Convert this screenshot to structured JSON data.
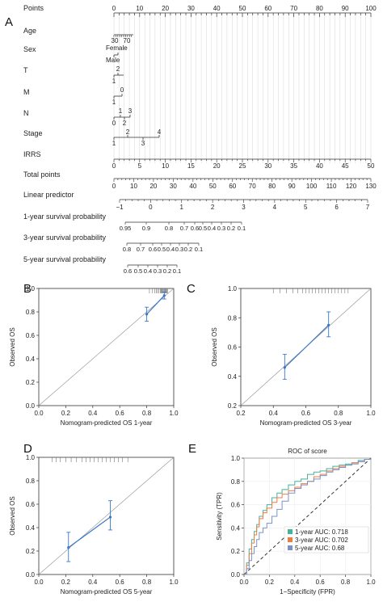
{
  "panels": {
    "A": "A",
    "B": "B",
    "C": "C",
    "D": "D",
    "E": "E"
  },
  "colors": {
    "curve": "#3a78c8",
    "ideal": "#9a9a9a",
    "rug": "#777777",
    "roc_1y": "#43b39a",
    "roc_3y": "#f07b3f",
    "roc_5y": "#7b92c9",
    "diagonal": "#333333"
  },
  "chart_data": [
    {
      "type": "table",
      "panel": "A",
      "description_kind": "nomogram",
      "rows": [
        {
          "label": "Points",
          "ticks": [
            "0",
            "10",
            "20",
            "30",
            "40",
            "50",
            "60",
            "70",
            "80",
            "90",
            "100"
          ],
          "values": [
            0,
            10,
            20,
            30,
            40,
            50,
            60,
            70,
            80,
            90,
            100
          ]
        },
        {
          "label": "Age",
          "ticks": [
            "30",
            "70"
          ],
          "values": [
            30,
            70
          ]
        },
        {
          "label": "Sex",
          "ticks": [
            "Female",
            "Male"
          ]
        },
        {
          "label": "T",
          "ticks": [
            "2",
            "1"
          ]
        },
        {
          "label": "M",
          "ticks": [
            "0",
            "1"
          ]
        },
        {
          "label": "N",
          "ticks": [
            "1",
            "3",
            "0",
            "2"
          ]
        },
        {
          "label": "Stage",
          "ticks": [
            "2",
            "4",
            "1",
            "3"
          ]
        },
        {
          "label": "IRRS",
          "ticks": [
            "0",
            "5",
            "10",
            "15",
            "20",
            "25",
            "30",
            "35",
            "40",
            "45",
            "50"
          ],
          "values": [
            0,
            5,
            10,
            15,
            20,
            25,
            30,
            35,
            40,
            45,
            50
          ]
        },
        {
          "label": "Total points",
          "ticks": [
            "0",
            "10",
            "20",
            "30",
            "40",
            "50",
            "60",
            "70",
            "80",
            "90",
            "100",
            "110",
            "120",
            "130"
          ],
          "values": [
            0,
            10,
            20,
            30,
            40,
            50,
            60,
            70,
            80,
            90,
            100,
            110,
            120,
            130
          ]
        },
        {
          "label": "Linear predictor",
          "ticks": [
            "−1",
            "0",
            "1",
            "2",
            "3",
            "4",
            "5",
            "6",
            "7"
          ],
          "values": [
            -1,
            0,
            1,
            2,
            3,
            4,
            5,
            6,
            7
          ]
        },
        {
          "label": "1-year survival probability",
          "ticks": [
            "0.95",
            "0.9",
            "0.8",
            "0.7",
            "0.6",
            "0.5",
            "0.4",
            "0.3",
            "0.2",
            "0.1"
          ],
          "values": [
            0.95,
            0.9,
            0.8,
            0.7,
            0.6,
            0.5,
            0.4,
            0.3,
            0.2,
            0.1
          ]
        },
        {
          "label": "3-year survival probability",
          "ticks": [
            "0.8",
            "0.7",
            "0.6",
            "0.5",
            "0.4",
            "0.3",
            "0.2",
            "0.1"
          ],
          "values": [
            0.8,
            0.7,
            0.6,
            0.5,
            0.4,
            0.3,
            0.2,
            0.1
          ]
        },
        {
          "label": "5-year survival probability",
          "ticks": [
            "0.6",
            "0.5",
            "0.4",
            "0.3",
            "0.2",
            "0.1"
          ],
          "values": [
            0.6,
            0.5,
            0.4,
            0.3,
            0.2,
            0.1
          ]
        }
      ]
    },
    {
      "type": "line",
      "panel": "B",
      "xlabel": "Nomogram-predicted OS 1-year",
      "ylabel": "Observed OS",
      "xlim": [
        0,
        1
      ],
      "ylim": [
        0,
        1
      ],
      "xticks": [
        "0.0",
        "0.2",
        "0.4",
        "0.6",
        "0.8",
        "1.0"
      ],
      "yticks": [
        "0.0",
        "0.2",
        "0.4",
        "0.6",
        "0.8",
        "1.0"
      ],
      "points": [
        {
          "x": 0.8,
          "y": 0.78,
          "lo": 0.72,
          "hi": 0.84
        },
        {
          "x": 0.93,
          "y": 0.94,
          "lo": 0.91,
          "hi": 0.97
        }
      ],
      "rug": [
        0.82,
        0.84,
        0.86,
        0.87,
        0.88,
        0.89,
        0.9,
        0.905,
        0.91,
        0.915,
        0.92,
        0.925,
        0.93,
        0.935,
        0.94,
        0.945,
        0.95,
        0.955
      ]
    },
    {
      "type": "line",
      "panel": "C",
      "xlabel": "Nomogram-predicted OS 3-year",
      "ylabel": "Observed OS",
      "xlim": [
        0.2,
        1
      ],
      "ylim": [
        0.2,
        1
      ],
      "xticks": [
        "0.2",
        "0.4",
        "0.6",
        "0.8",
        "1.0"
      ],
      "yticks": [
        "0.2",
        "0.4",
        "0.6",
        "0.8",
        "1.0"
      ],
      "points": [
        {
          "x": 0.47,
          "y": 0.46,
          "lo": 0.38,
          "hi": 0.55
        },
        {
          "x": 0.74,
          "y": 0.75,
          "lo": 0.67,
          "hi": 0.84
        }
      ],
      "rug": [
        0.4,
        0.44,
        0.48,
        0.52,
        0.55,
        0.58,
        0.6,
        0.62,
        0.64,
        0.66,
        0.68,
        0.7,
        0.72,
        0.74,
        0.76,
        0.78,
        0.8,
        0.82,
        0.84,
        0.86
      ]
    },
    {
      "type": "line",
      "panel": "D",
      "xlabel": "Nomogram-predicted OS 5-year",
      "ylabel": "Observed OS",
      "xlim": [
        0,
        1
      ],
      "ylim": [
        0,
        1
      ],
      "xticks": [
        "0.0",
        "0.2",
        "0.4",
        "0.6",
        "0.8",
        "1.0"
      ],
      "yticks": [
        "0.0",
        "0.2",
        "0.4",
        "0.6",
        "0.8",
        "1.0"
      ],
      "points": [
        {
          "x": 0.22,
          "y": 0.23,
          "lo": 0.11,
          "hi": 0.36
        },
        {
          "x": 0.53,
          "y": 0.49,
          "lo": 0.38,
          "hi": 0.63
        }
      ],
      "rug": [
        0.1,
        0.13,
        0.16,
        0.2,
        0.24,
        0.28,
        0.32,
        0.35,
        0.38,
        0.41,
        0.44,
        0.47,
        0.5,
        0.53,
        0.56,
        0.59,
        0.62,
        0.66
      ]
    },
    {
      "type": "line",
      "panel": "E",
      "title": "ROC of score",
      "xlabel": "1−Specificity (FPR)",
      "ylabel": "Sensitivity (TPR)",
      "xlim": [
        0,
        1
      ],
      "ylim": [
        0,
        1
      ],
      "xticks": [
        "0.0",
        "0.2",
        "0.4",
        "0.6",
        "0.8",
        "1.0"
      ],
      "yticks": [
        "0.0",
        "0.2",
        "0.4",
        "0.6",
        "0.8",
        "1.0"
      ],
      "legend_position": "bottom-right",
      "series": [
        {
          "name": "1-year AUC: 0.718",
          "color_key": "roc_1y",
          "x": [
            0,
            0.02,
            0.04,
            0.06,
            0.08,
            0.1,
            0.12,
            0.15,
            0.18,
            0.22,
            0.26,
            0.3,
            0.35,
            0.4,
            0.45,
            0.5,
            0.55,
            0.6,
            0.65,
            0.7,
            0.75,
            0.8,
            0.85,
            0.9,
            0.95,
            1.0
          ],
          "y": [
            0,
            0.1,
            0.22,
            0.3,
            0.37,
            0.43,
            0.5,
            0.55,
            0.6,
            0.66,
            0.7,
            0.73,
            0.77,
            0.8,
            0.82,
            0.86,
            0.88,
            0.89,
            0.91,
            0.93,
            0.94,
            0.95,
            0.96,
            0.98,
            0.99,
            1.0
          ]
        },
        {
          "name": "3-year AUC: 0.702",
          "color_key": "roc_3y",
          "x": [
            0,
            0.02,
            0.04,
            0.06,
            0.08,
            0.1,
            0.12,
            0.15,
            0.18,
            0.22,
            0.26,
            0.3,
            0.35,
            0.4,
            0.45,
            0.5,
            0.55,
            0.6,
            0.65,
            0.7,
            0.75,
            0.8,
            0.85,
            0.9,
            0.95,
            1.0
          ],
          "y": [
            0,
            0.08,
            0.18,
            0.27,
            0.34,
            0.41,
            0.48,
            0.53,
            0.57,
            0.62,
            0.66,
            0.69,
            0.72,
            0.75,
            0.78,
            0.8,
            0.84,
            0.86,
            0.89,
            0.91,
            0.93,
            0.94,
            0.96,
            0.97,
            0.99,
            1.0
          ]
        },
        {
          "name": "5-year AUC: 0.68",
          "color_key": "roc_5y",
          "x": [
            0,
            0.02,
            0.04,
            0.06,
            0.08,
            0.1,
            0.12,
            0.15,
            0.18,
            0.22,
            0.26,
            0.3,
            0.35,
            0.4,
            0.45,
            0.5,
            0.55,
            0.6,
            0.65,
            0.7,
            0.75,
            0.8,
            0.85,
            0.9,
            0.95,
            1.0
          ],
          "y": [
            0,
            0.05,
            0.12,
            0.18,
            0.24,
            0.3,
            0.36,
            0.4,
            0.44,
            0.5,
            0.56,
            0.63,
            0.7,
            0.74,
            0.77,
            0.8,
            0.82,
            0.85,
            0.88,
            0.9,
            0.92,
            0.94,
            0.95,
            0.97,
            0.99,
            1.0
          ]
        }
      ]
    }
  ]
}
